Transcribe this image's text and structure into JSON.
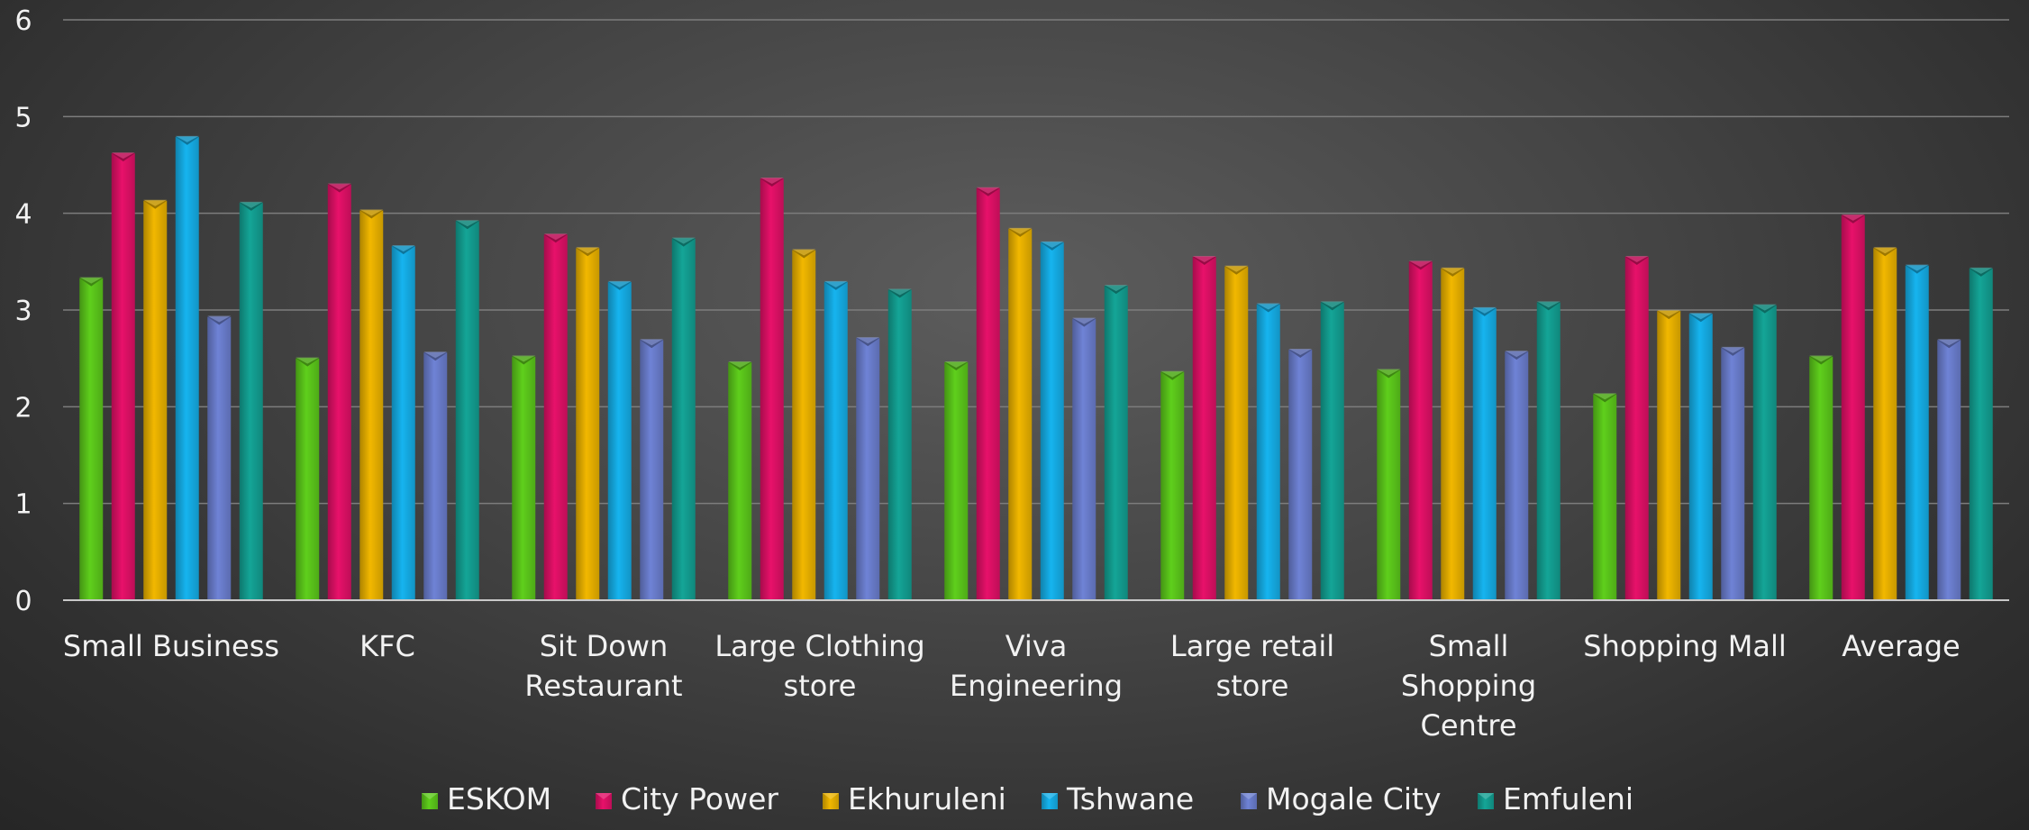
{
  "chart_data": {
    "type": "bar",
    "ylim": [
      0,
      6
    ],
    "yticks": [
      0,
      1,
      2,
      3,
      4,
      5,
      6
    ],
    "grid": true,
    "legend_position": "bottom",
    "categories": [
      [
        "Small Business"
      ],
      [
        "KFC"
      ],
      [
        "Sit Down",
        "Restaurant"
      ],
      [
        "Large Clothing",
        "store"
      ],
      [
        "Viva",
        "Engineering"
      ],
      [
        "Large retail",
        "store"
      ],
      [
        "Small",
        "Shopping",
        "Centre"
      ],
      [
        "Shopping Mall"
      ],
      [
        "Average"
      ]
    ],
    "series": [
      {
        "name": "ESKOM",
        "color": "#5fcf1c",
        "values": [
          3.33,
          2.5,
          2.52,
          2.46,
          2.46,
          2.36,
          2.38,
          2.13,
          2.52
        ]
      },
      {
        "name": "City Power",
        "color": "#e8116a",
        "values": [
          4.62,
          4.3,
          3.78,
          4.36,
          4.26,
          3.55,
          3.5,
          3.55,
          3.98
        ]
      },
      {
        "name": "Ekhuruleni",
        "color": "#f2b800",
        "values": [
          4.13,
          4.03,
          3.64,
          3.62,
          3.84,
          3.45,
          3.43,
          2.99,
          3.64
        ]
      },
      {
        "name": "Tshwane",
        "color": "#16b4ef",
        "values": [
          4.79,
          3.66,
          3.29,
          3.29,
          3.7,
          3.06,
          3.02,
          2.96,
          3.46
        ]
      },
      {
        "name": "Mogale City",
        "color": "#6f83d6",
        "values": [
          2.93,
          2.56,
          2.69,
          2.71,
          2.91,
          2.59,
          2.57,
          2.61,
          2.69
        ]
      },
      {
        "name": "Emfuleni",
        "color": "#14a597",
        "values": [
          4.11,
          3.92,
          3.74,
          3.21,
          3.25,
          3.08,
          3.08,
          3.05,
          3.43
        ]
      }
    ]
  }
}
